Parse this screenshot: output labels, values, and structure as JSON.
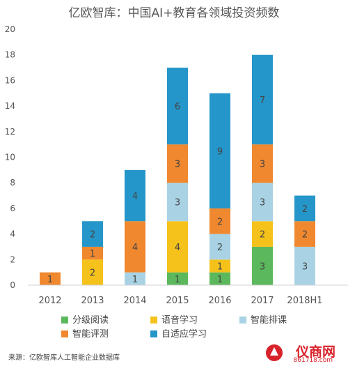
{
  "title": "亿欧智库：中国AI+教育各领域投资频数",
  "source": "来源：亿欧智库人工智能企业数据库",
  "watermark": {
    "brand": "仪商网",
    "url": "861718.com"
  },
  "colors": {
    "分级阅读": "#5cb85c",
    "语音学习": "#f5c21b",
    "智能排课": "#a9d3e5",
    "智能评测": "#f0882f",
    "自适应学习": "#2596c9"
  },
  "chart_data": {
    "type": "bar",
    "stacked": true,
    "title": "亿欧智库：中国AI+教育各领域投资频数",
    "categories": [
      "2012",
      "2013",
      "2014",
      "2015",
      "2016",
      "2017",
      "2018H1"
    ],
    "ylim": [
      0,
      20
    ],
    "yticks": [
      0,
      2,
      4,
      6,
      8,
      10,
      12,
      14,
      16,
      18,
      20
    ],
    "grid": false,
    "legend_position": "bottom",
    "series": [
      {
        "name": "分级阅读",
        "values": [
          0,
          0,
          0,
          1,
          1,
          3,
          0
        ]
      },
      {
        "name": "语音学习",
        "values": [
          0,
          2,
          0,
          4,
          1,
          2,
          0
        ]
      },
      {
        "name": "智能排课",
        "values": [
          0,
          0,
          1,
          3,
          2,
          3,
          3
        ]
      },
      {
        "name": "智能评测",
        "values": [
          1,
          1,
          4,
          3,
          2,
          3,
          2
        ]
      },
      {
        "name": "自适应学习",
        "values": [
          0,
          2,
          4,
          6,
          9,
          7,
          2
        ]
      }
    ]
  }
}
